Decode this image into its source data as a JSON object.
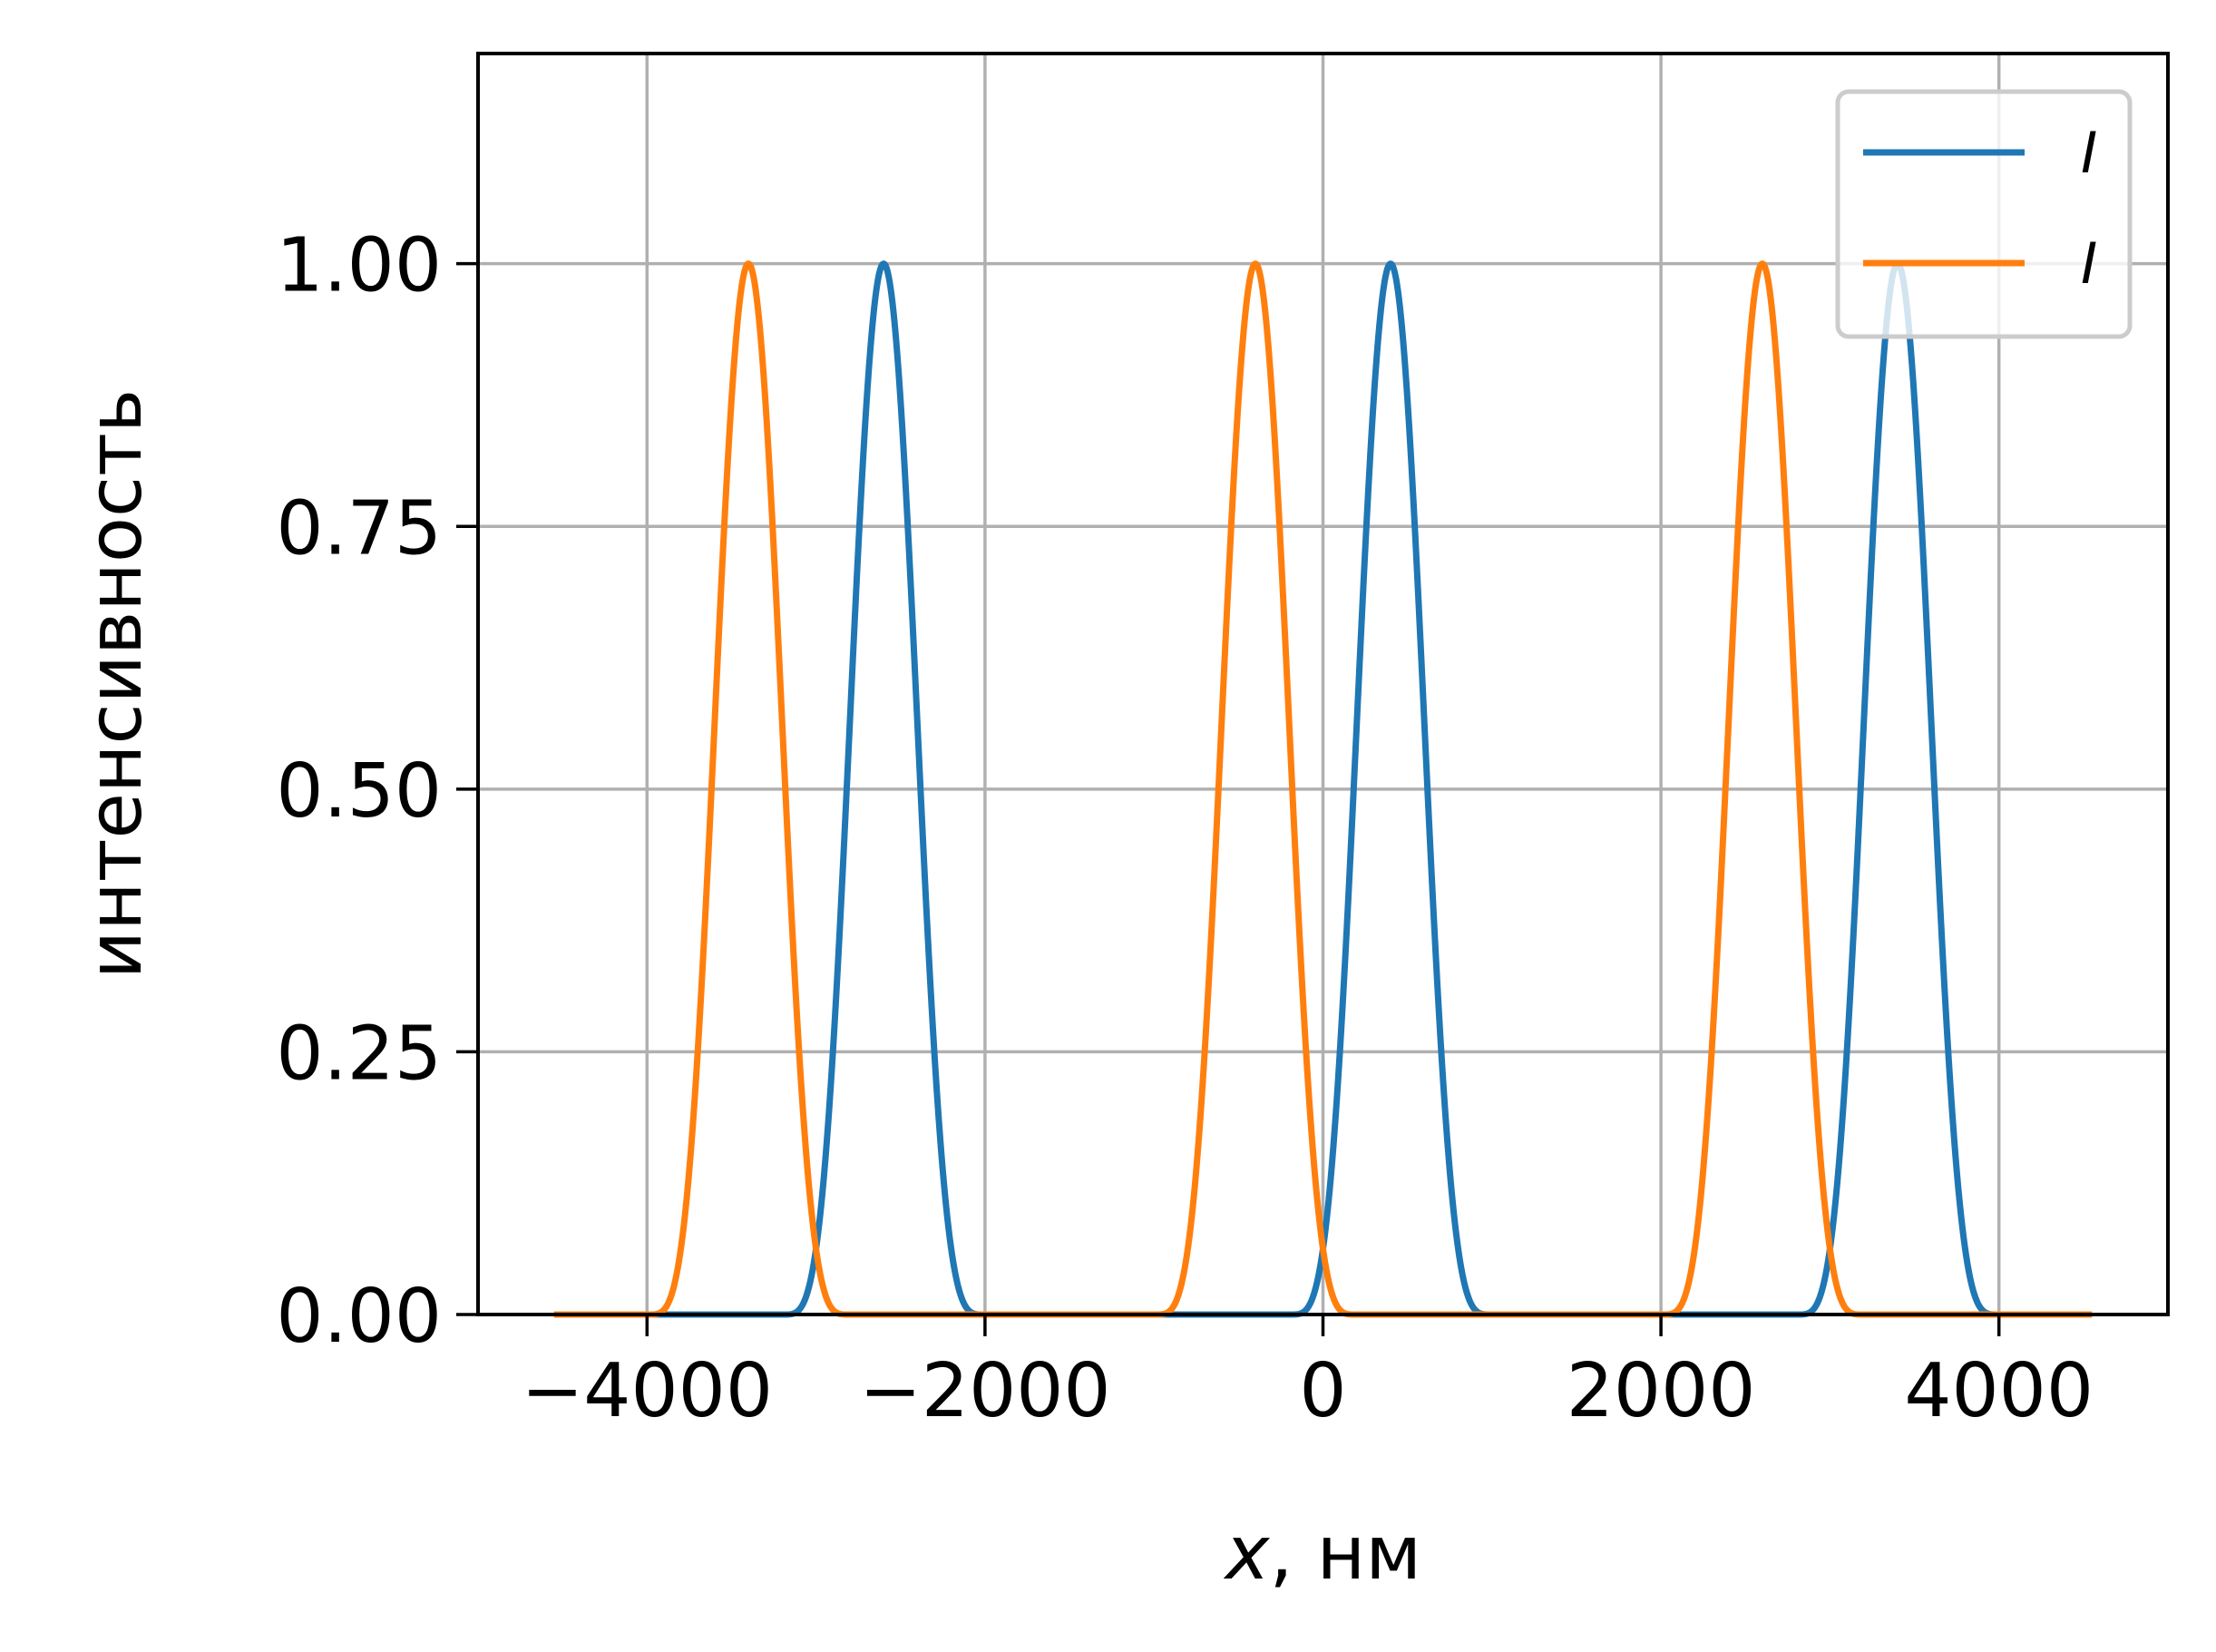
{
  "chart_data": {
    "type": "line",
    "xlabel_italic": "x",
    "xlabel_rest": ", нм",
    "ylabel": "интенсивность",
    "xlim": [
      -5000,
      5000
    ],
    "ylim": [
      0,
      1.2
    ],
    "xticks": [
      -4000,
      -2000,
      0,
      2000,
      4000
    ],
    "xtick_labels": [
      "−4000",
      "−2000",
      "0",
      "2000",
      "4000"
    ],
    "yticks": [
      0,
      0.25,
      0.5,
      0.75,
      1.0
    ],
    "ytick_labels": [
      "0.00",
      "0.25",
      "0.50",
      "0.75",
      "1.00"
    ],
    "grid": true,
    "legend_position": "upper right",
    "x_range": [
      -4550,
      4550
    ],
    "series": [
      {
        "name": "I",
        "color": "#1f77b4",
        "peaks": [
          -2600,
          400,
          3400
        ],
        "peak_value": 1.0,
        "half_width": 600
      },
      {
        "name": "I",
        "color": "#ff7f0e",
        "peaks": [
          -3400,
          -400,
          2600
        ],
        "peak_value": 1.0,
        "half_width": 600
      }
    ]
  }
}
